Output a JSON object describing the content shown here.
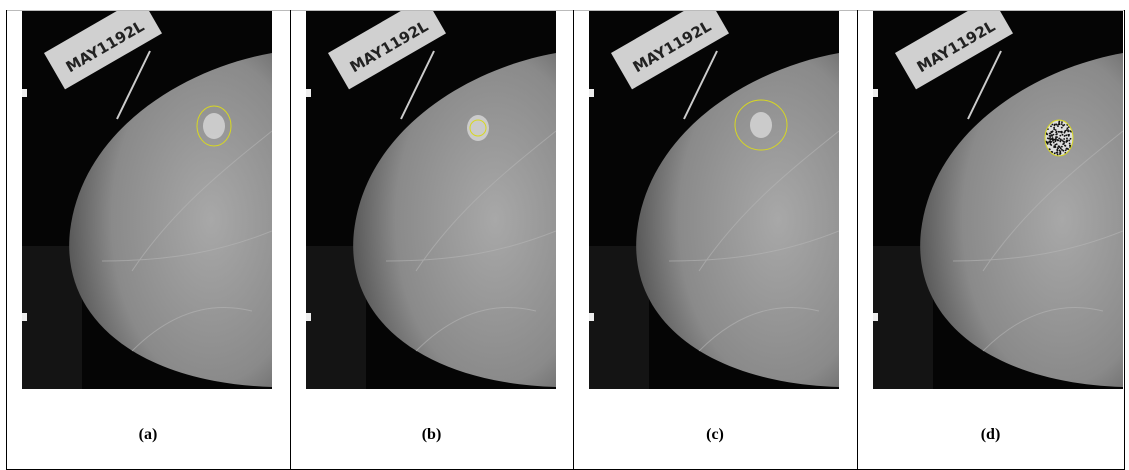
{
  "film_label": "MAY1192L",
  "panels": [
    {
      "caption": "(a)"
    },
    {
      "caption": "(b)"
    },
    {
      "caption": "(c)"
    },
    {
      "caption": "(d)"
    }
  ]
}
